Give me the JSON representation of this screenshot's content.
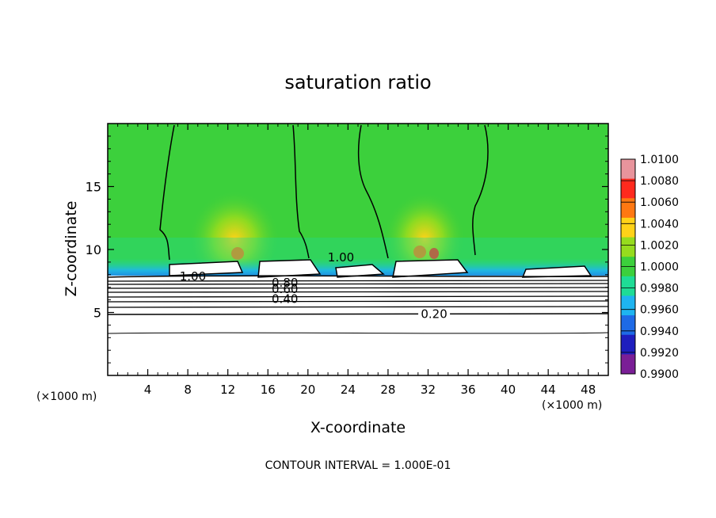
{
  "chart_data": {
    "type": "heatmap",
    "title": "saturation ratio",
    "xlabel": "X-coordinate",
    "ylabel": "Z-coordinate",
    "x_unit_left": "(×1000 m)",
    "x_unit_right": "(×1000 m)",
    "xlim": [
      0,
      50
    ],
    "ylim": [
      0,
      20
    ],
    "x_ticks": [
      4,
      8,
      12,
      16,
      20,
      24,
      28,
      32,
      36,
      40,
      44,
      48
    ],
    "y_ticks": [
      5,
      10,
      15
    ],
    "footer": "CONTOUR INTERVAL = 1.000E-01",
    "contour_labels": [
      {
        "text": "1.00",
        "x": 8.5,
        "z": 7.8
      },
      {
        "text": "1.00",
        "x": 23.3,
        "z": 9.3
      },
      {
        "text": "0.80",
        "x": 17.7,
        "z": 7.3
      },
      {
        "text": "0.60",
        "x": 17.7,
        "z": 6.8
      },
      {
        "text": "0.40",
        "x": 17.7,
        "z": 6.0
      },
      {
        "text": "0.20",
        "x": 32.6,
        "z": 4.8
      }
    ],
    "colorbar": {
      "levels": [
        "1.0100",
        "1.0080",
        "1.0060",
        "1.0040",
        "1.0020",
        "1.0000",
        "0.9980",
        "0.9960",
        "0.9940",
        "0.9920",
        "0.9900"
      ],
      "colors": [
        "#e8949c",
        "#ff2a1e",
        "#ff7812",
        "#ffd218",
        "#96dc1e",
        "#3cd03c",
        "#1edc96",
        "#1eb4f0",
        "#1e6ae6",
        "#1e1ebe",
        "#7a1e96"
      ]
    },
    "colors": {
      "background_field": "#3cd03c",
      "subsaturated_region": "#ffffff",
      "contour_line": "#000000"
    }
  }
}
